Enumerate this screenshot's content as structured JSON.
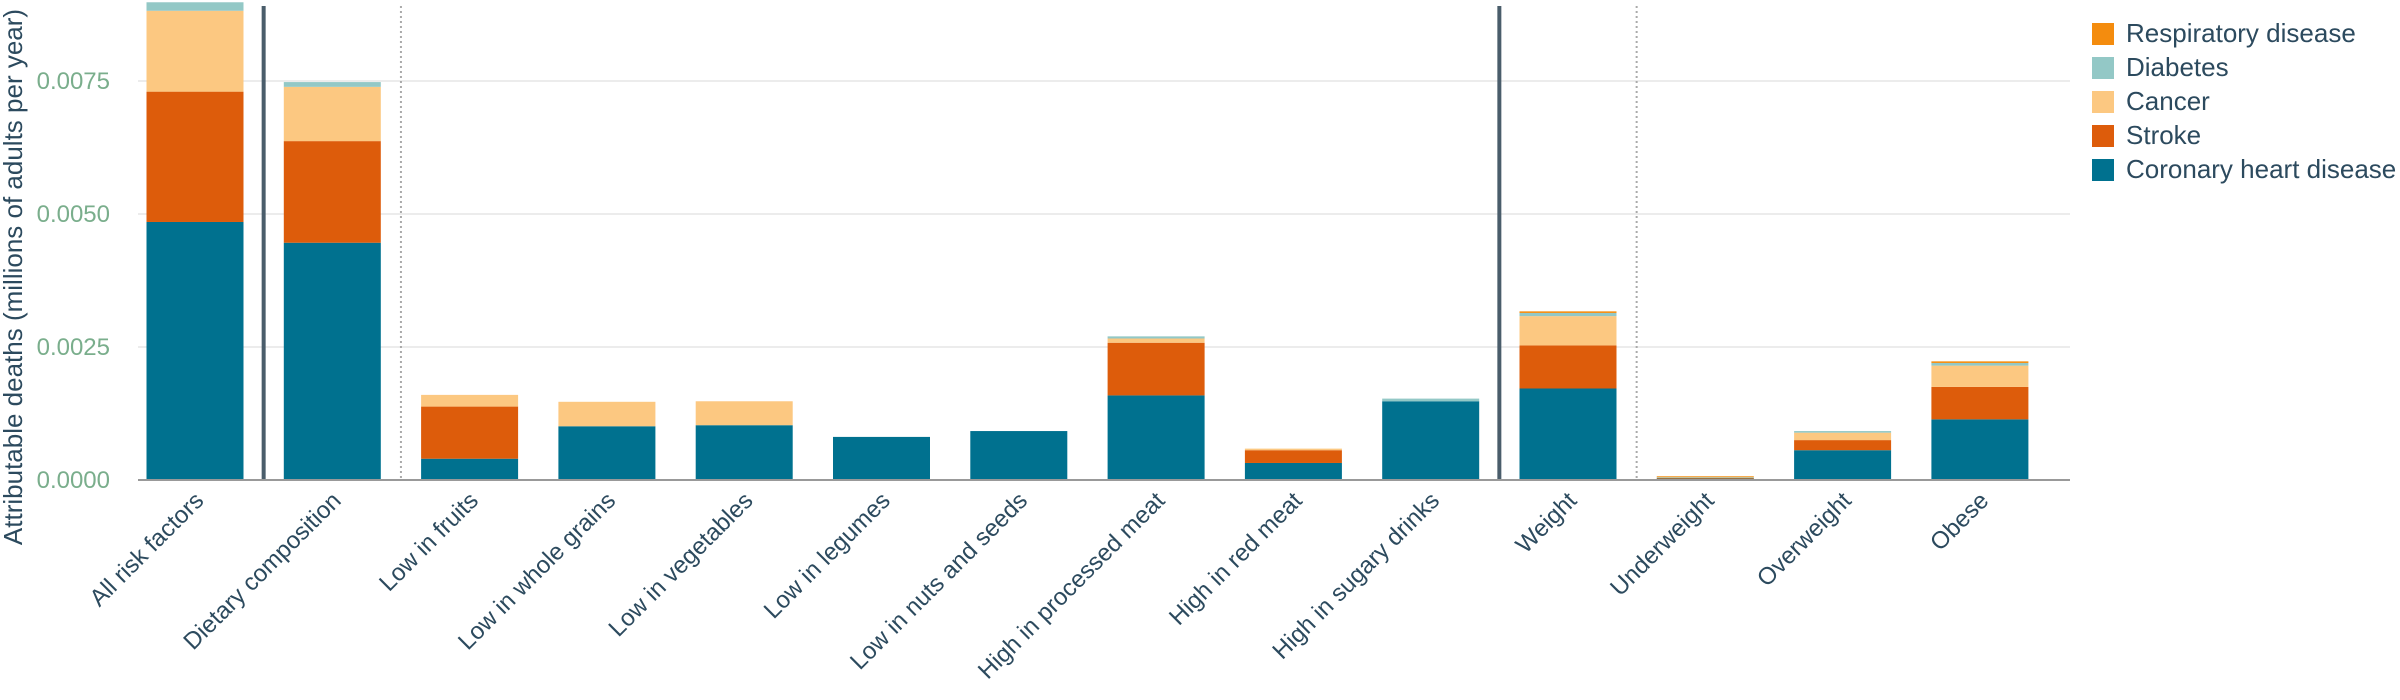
{
  "chart_data": {
    "type": "bar",
    "stacked": true,
    "ylabel": "Attributable deaths (millions of adults per year)",
    "ylim": [
      0,
      0.009
    ],
    "yticks": [
      "0.0000",
      "0.0025",
      "0.0050",
      "0.0075"
    ],
    "ytick_values": [
      0,
      0.0025,
      0.005,
      0.0075
    ],
    "grid": true,
    "legend_position": "top-right",
    "categories": [
      "All risk factors",
      "Dietary composition",
      "Low in fruits",
      "Low in whole grains",
      "Low in vegetables",
      "Low in legumes",
      "Low in nuts and seeds",
      "High in processed meat",
      "High in red meat",
      "High in sugary drinks",
      "Weight",
      "Underweight",
      "Overweight",
      "Obese"
    ],
    "series": [
      {
        "name": "Coronary heart disease",
        "color": "#00718f",
        "values": [
          0.00485,
          0.00446,
          0.0004,
          0.00101,
          0.00103,
          0.00081,
          0.00092,
          0.00159,
          0.00032,
          0.00148,
          0.00172,
          3e-05,
          0.00056,
          0.00114
        ]
      },
      {
        "name": "Stroke",
        "color": "#dd5c0b",
        "values": [
          0.00245,
          0.00191,
          0.00098,
          0.0,
          0.0,
          0.0,
          0.0,
          0.00099,
          0.00024,
          0.0,
          0.00081,
          1e-05,
          0.00019,
          0.00061
        ]
      },
      {
        "name": "Cancer",
        "color": "#fcc881",
        "values": [
          0.00152,
          0.00102,
          0.00022,
          0.00046,
          0.00045,
          0.0,
          0.0,
          8e-05,
          3e-05,
          0.0,
          0.00055,
          1e-05,
          0.00014,
          0.0004
        ]
      },
      {
        "name": "Diabetes",
        "color": "#93c8c6",
        "values": [
          0.00016,
          9e-05,
          0.0,
          0.0,
          0.0,
          0.0,
          0.0,
          4e-05,
          0.0,
          5e-05,
          6e-05,
          1e-05,
          3e-05,
          5e-05
        ]
      },
      {
        "name": "Respiratory disease",
        "color": "#f48c0e",
        "values": [
          0.0,
          0.0,
          0.0,
          0.0,
          0.0,
          0.0,
          0.0,
          0.0,
          0.0,
          0.0,
          3e-05,
          1e-05,
          0.0,
          3e-05
        ]
      }
    ],
    "legend_order": [
      "Respiratory disease",
      "Diabetes",
      "Cancer",
      "Stroke",
      "Coronary heart disease"
    ],
    "colors": {
      "ytick": "#7aae8c",
      "text": "#2c4a5e",
      "axis": "#999999",
      "grid": "#e6e6e6",
      "solid_separator": "#4a5d6b",
      "dotted_separator": "#aaaaaa"
    }
  }
}
